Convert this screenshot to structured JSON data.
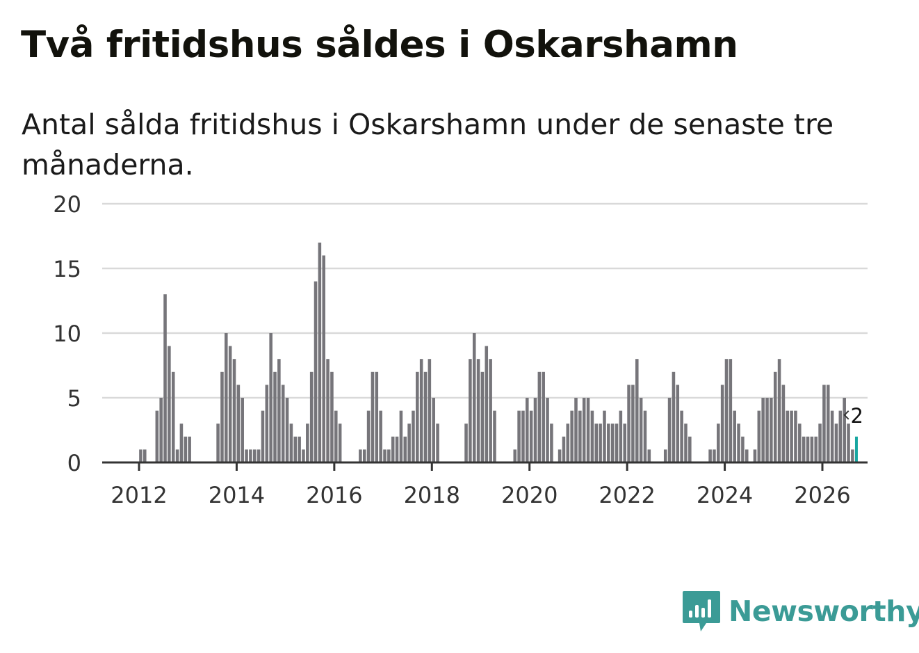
{
  "header": {
    "title": "Två fritidshus såldes i Oskarshamn",
    "subtitle": "Antal sålda fritidshus i Oskarshamn under de senaste tre månaderna."
  },
  "brand": {
    "name": "Newsworthy",
    "color": "#3b9b96"
  },
  "colors": {
    "bar": "#76757a",
    "highlight": "#17a6a0",
    "baseline": "#333333",
    "grid": "#d9d9d9"
  },
  "chart_data": {
    "type": "bar",
    "title": "Två fritidshus såldes i Oskarshamn",
    "subtitle": "Antal sålda fritidshus i Oskarshamn under de senaste tre månaderna.",
    "xlabel": "",
    "ylabel": "",
    "ylim": [
      0,
      20
    ],
    "yticks": [
      "0",
      "5",
      "10",
      "15",
      "20"
    ],
    "xticks": [
      "2012",
      "2014",
      "2016",
      "2018",
      "2020",
      "2022",
      "2024",
      "2026"
    ],
    "x_start": "2011-03",
    "frequency": "monthly",
    "highlight_label": "2",
    "values": [
      0,
      0,
      0,
      0,
      0,
      0,
      0,
      0,
      0,
      0,
      1,
      1,
      0,
      0,
      4,
      5,
      13,
      9,
      7,
      1,
      3,
      2,
      2,
      0,
      0,
      0,
      0,
      0,
      0,
      3,
      7,
      10,
      9,
      8,
      6,
      5,
      1,
      1,
      1,
      1,
      4,
      6,
      10,
      7,
      8,
      6,
      5,
      3,
      2,
      2,
      1,
      3,
      7,
      14,
      17,
      16,
      8,
      7,
      4,
      3,
      0,
      0,
      0,
      0,
      1,
      1,
      4,
      7,
      7,
      4,
      1,
      1,
      2,
      2,
      4,
      2,
      3,
      4,
      7,
      8,
      7,
      8,
      5,
      3,
      0,
      0,
      0,
      0,
      0,
      0,
      3,
      8,
      10,
      8,
      7,
      9,
      8,
      4,
      0,
      0,
      0,
      0,
      1,
      4,
      4,
      5,
      4,
      5,
      7,
      7,
      5,
      3,
      0,
      1,
      2,
      3,
      4,
      5,
      4,
      5,
      5,
      4,
      3,
      3,
      4,
      3,
      3,
      3,
      4,
      3,
      6,
      6,
      8,
      5,
      4,
      1,
      0,
      0,
      0,
      1,
      5,
      7,
      6,
      4,
      3,
      2,
      0,
      0,
      0,
      0,
      1,
      1,
      3,
      6,
      8,
      8,
      4,
      3,
      2,
      1,
      0,
      1,
      4,
      5,
      5,
      5,
      7,
      8,
      6,
      4,
      4,
      4,
      3,
      2,
      2,
      2,
      2,
      3,
      6,
      6,
      4,
      3,
      4,
      5,
      3,
      1,
      2
    ]
  }
}
